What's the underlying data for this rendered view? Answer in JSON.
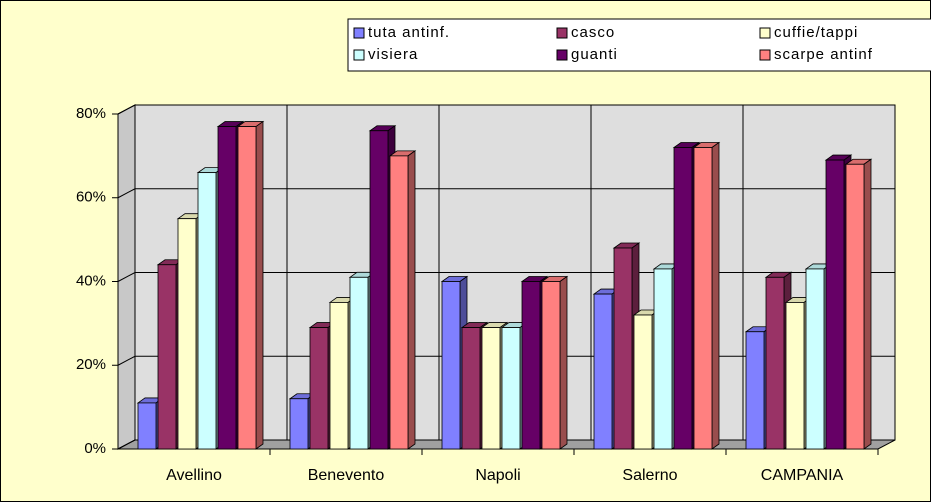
{
  "chart_data": {
    "type": "bar3d",
    "categories": [
      "Avellino",
      "Benevento",
      "Napoli",
      "Salerno",
      "CAMPANIA"
    ],
    "series": [
      {
        "name": "tuta antinf.",
        "color": "#8080ff",
        "values": [
          11,
          12,
          40,
          37,
          28
        ]
      },
      {
        "name": "casco",
        "color": "#993366",
        "values": [
          44,
          29,
          29,
          48,
          41
        ]
      },
      {
        "name": "cuffie/tappi",
        "color": "#ffffcc",
        "values": [
          55,
          35,
          29,
          32,
          35
        ]
      },
      {
        "name": "visiera",
        "color": "#ccffff",
        "values": [
          66,
          41,
          29,
          43,
          43
        ]
      },
      {
        "name": "guanti",
        "color": "#660066",
        "values": [
          77,
          76,
          40,
          72,
          69
        ]
      },
      {
        "name": "scarpe antinf",
        "color": "#ff8080",
        "values": [
          77,
          70,
          40,
          72,
          68
        ]
      }
    ],
    "ylim": [
      0,
      80
    ],
    "yticks": [
      {
        "value": 0,
        "label": "0%"
      },
      {
        "value": 20,
        "label": "20%"
      },
      {
        "value": 40,
        "label": "40%"
      },
      {
        "value": 60,
        "label": "60%"
      },
      {
        "value": 80,
        "label": "80%"
      }
    ],
    "grid": true,
    "legend": "top"
  }
}
